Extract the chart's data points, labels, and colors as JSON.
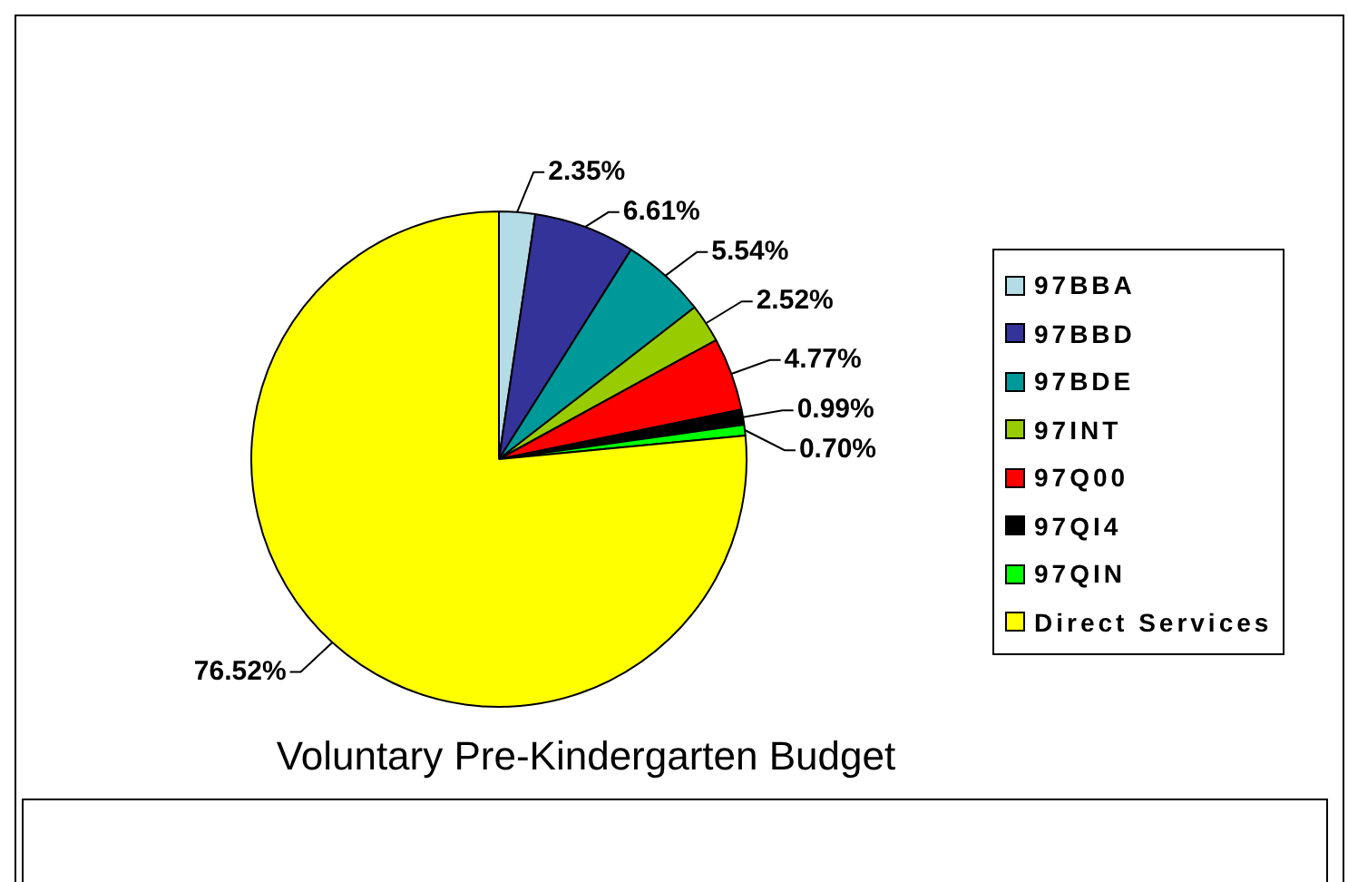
{
  "chart_data": {
    "type": "pie",
    "title": "Voluntary Pre-Kindergarten Budget",
    "categories": [
      "97BBA",
      "97BBD",
      "97BDE",
      "97INT",
      "97Q00",
      "97QI4",
      "97QIN",
      "Direct Services"
    ],
    "values": [
      2.35,
      6.61,
      5.54,
      2.52,
      4.77,
      0.99,
      0.7,
      76.52
    ],
    "colors": [
      "#b4dce6",
      "#333399",
      "#009999",
      "#99cc00",
      "#ff0000",
      "#000000",
      "#00ff00",
      "#ffff00"
    ],
    "value_labels": [
      "2.35%",
      "6.61%",
      "5.54%",
      "2.52%",
      "4.77%",
      "0.99%",
      "0.70%",
      "76.52%"
    ],
    "legend": "right"
  }
}
